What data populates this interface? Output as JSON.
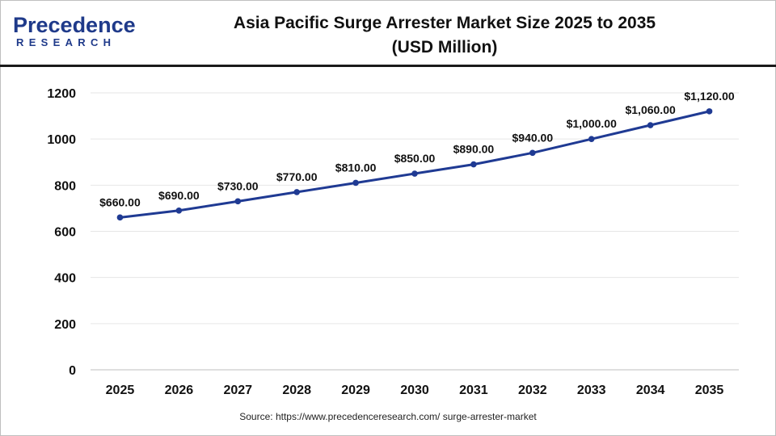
{
  "brand": {
    "logo_word": "Precedence",
    "logo_sub": "RESEARCH"
  },
  "header": {
    "title_line1": "Asia Pacific Surge Arrester Market Size 2025 to 2035",
    "title_line2": "(USD Million)"
  },
  "chart_data": {
    "type": "line",
    "x": [
      "2025",
      "2026",
      "2027",
      "2028",
      "2029",
      "2030",
      "2031",
      "2032",
      "2033",
      "2034",
      "2035"
    ],
    "series": [
      {
        "values": [
          660,
          690,
          730,
          770,
          810,
          850,
          890,
          940,
          1000,
          1060,
          1120
        ],
        "labels": [
          "$660.00",
          "$690.00",
          "$730.00",
          "$770.00",
          "$810.00",
          "$850.00",
          "$890.00",
          "$940.00",
          "$1,000.00",
          "$1,060.00",
          "$1,120.00"
        ],
        "color": "#1f3a93"
      }
    ],
    "yticks": [
      "0",
      "200",
      "400",
      "600",
      "800",
      "1000",
      "1200"
    ],
    "ylim": [
      0,
      1200
    ],
    "grid": true,
    "legend": "none"
  },
  "footer": {
    "source": "Source: https://www.precedenceresearch.com/ surge-arrester-market"
  }
}
